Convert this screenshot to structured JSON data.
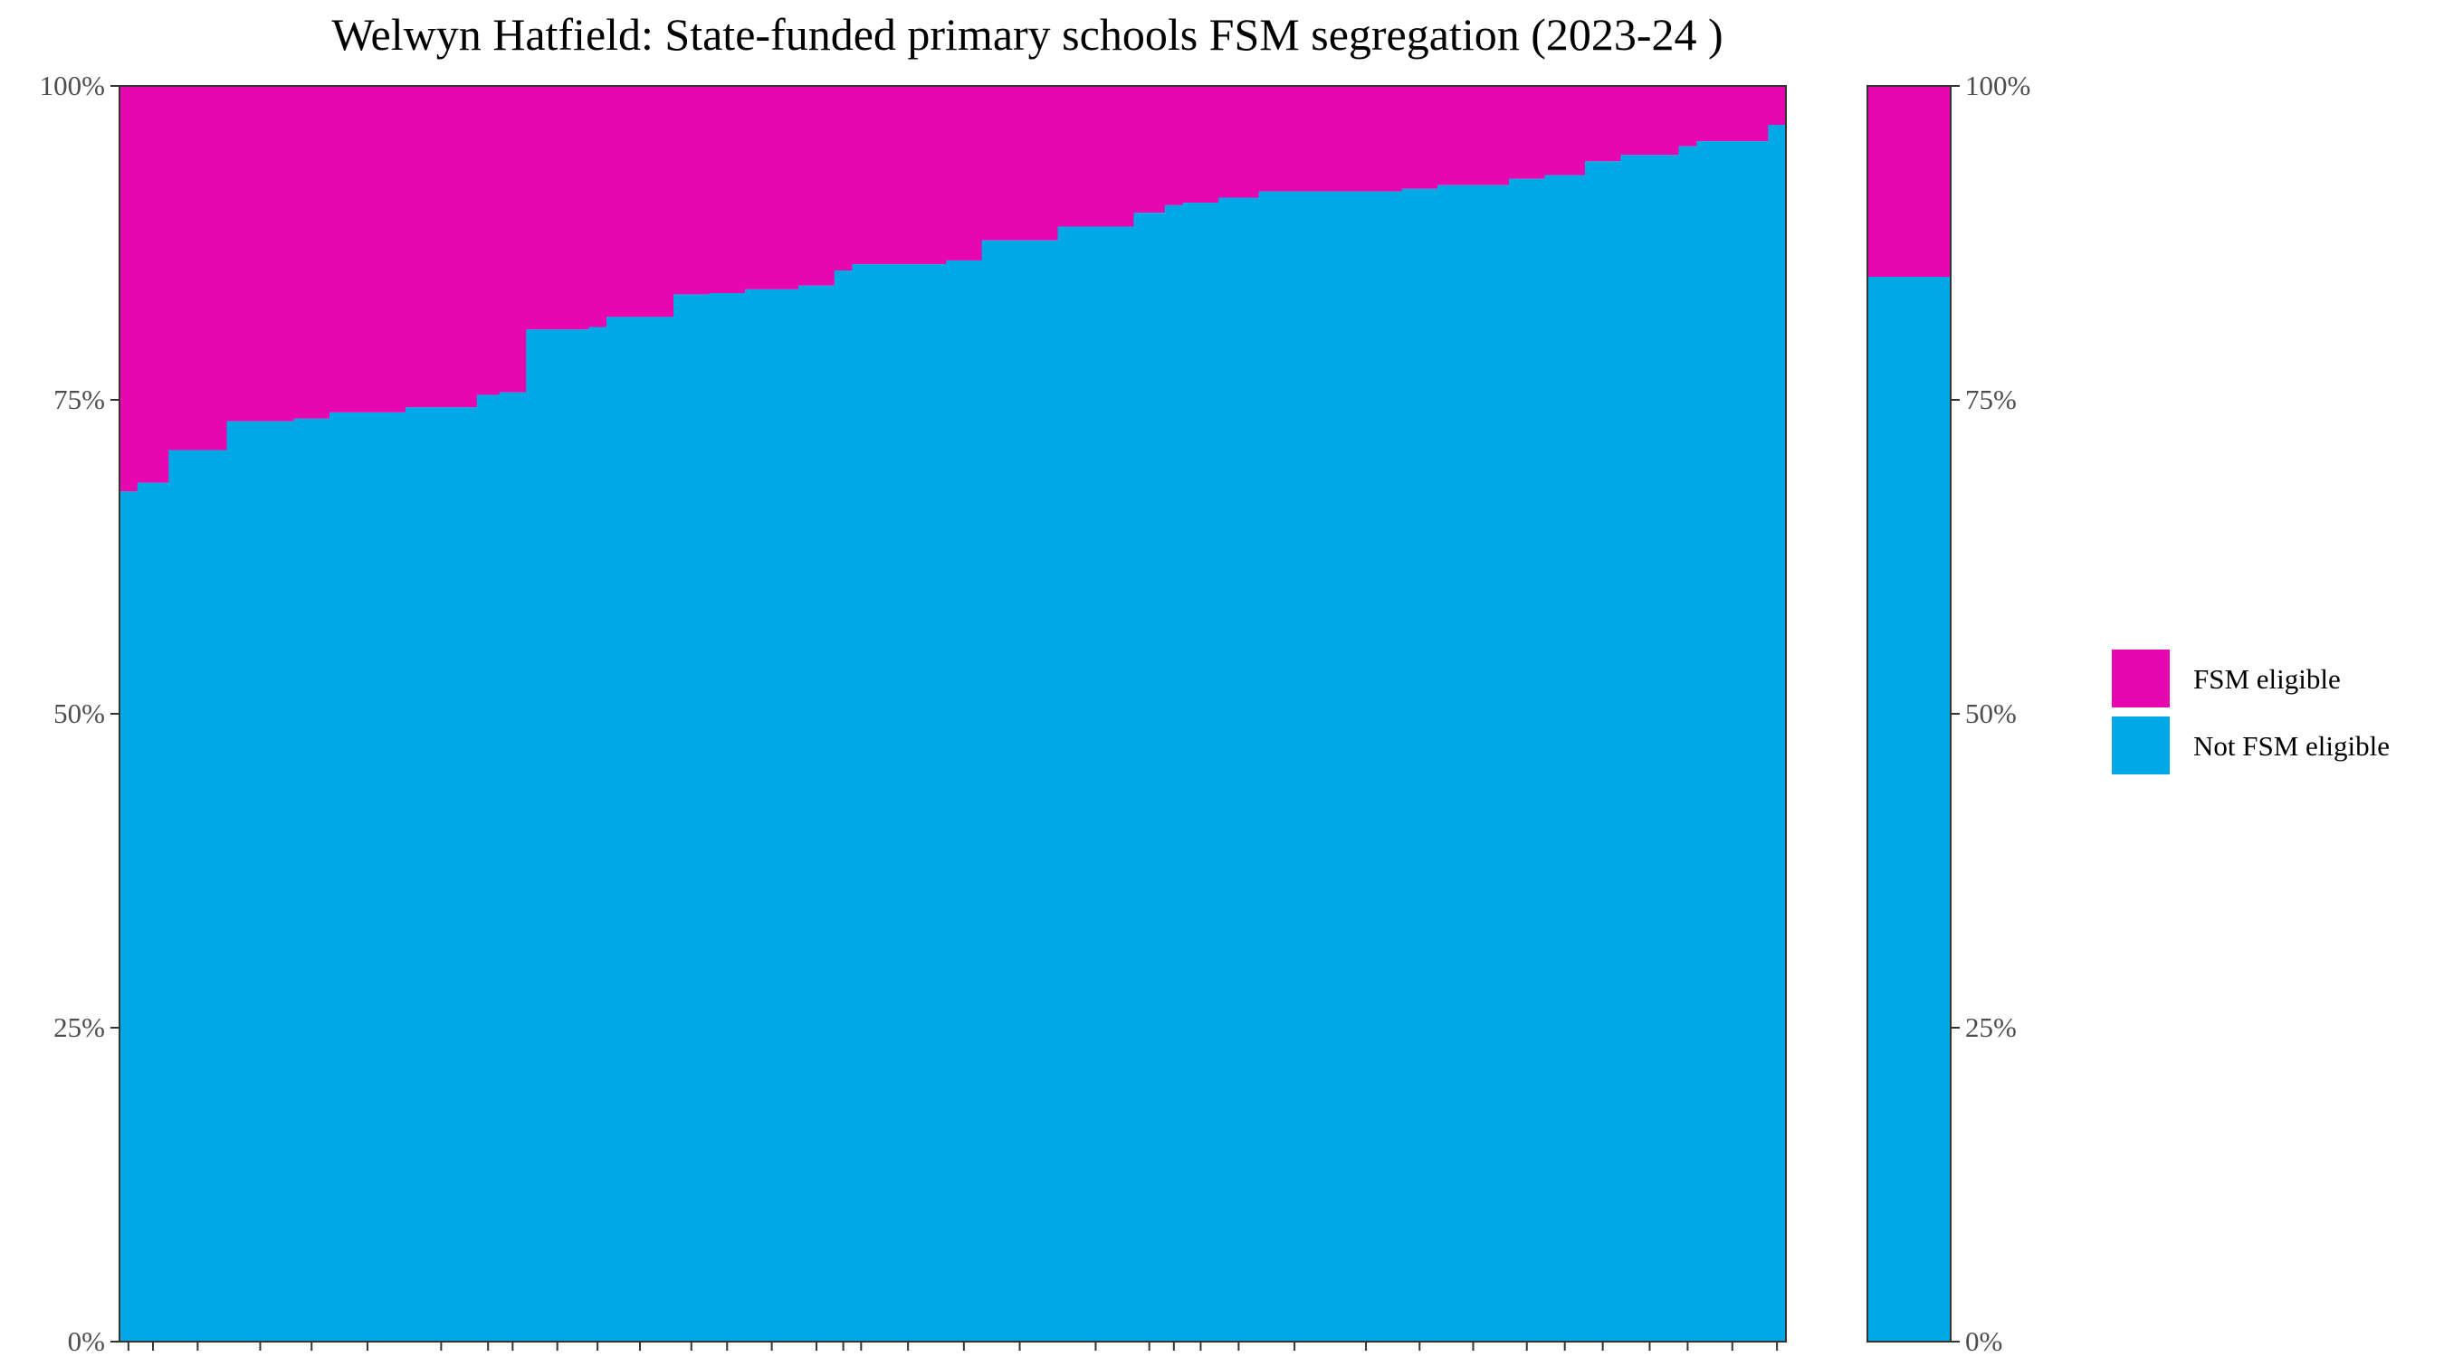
{
  "chart_data": {
    "type": "bar",
    "stacked": true,
    "normalized": true,
    "title": "Welwyn Hatfield: State-funded primary schools FSM segregation (2023-24 )",
    "xlabel": "",
    "ylabel": "",
    "ylim": [
      0,
      100
    ],
    "y_ticks": [
      "0%",
      "25%",
      "50%",
      "75%",
      "100%"
    ],
    "grid": false,
    "legend_position": "right",
    "colors": {
      "fsm": "#E707B0",
      "not_fsm": "#00A8E6",
      "axis": "#333333",
      "tick_text": "#4d4d4d"
    },
    "legend": [
      {
        "key": "fsm",
        "label": "FSM eligible"
      },
      {
        "key": "not_fsm",
        "label": "Not FSM eligible"
      }
    ],
    "units": "percent of pupils",
    "schools": [
      {
        "pupils": 20,
        "not_fsm": 67.7
      },
      {
        "pupils": 35,
        "not_fsm": 68.4
      },
      {
        "pupils": 65,
        "not_fsm": 71.0
      },
      {
        "pupils": 75,
        "not_fsm": 73.3
      },
      {
        "pupils": 40,
        "not_fsm": 73.5
      },
      {
        "pupils": 85,
        "not_fsm": 74.0
      },
      {
        "pupils": 80,
        "not_fsm": 74.4
      },
      {
        "pupils": 25,
        "not_fsm": 75.4
      },
      {
        "pupils": 30,
        "not_fsm": 75.6
      },
      {
        "pupils": 70,
        "not_fsm": 80.6
      },
      {
        "pupils": 20,
        "not_fsm": 80.8
      },
      {
        "pupils": 75,
        "not_fsm": 81.6
      },
      {
        "pupils": 40,
        "not_fsm": 83.4
      },
      {
        "pupils": 40,
        "not_fsm": 83.5
      },
      {
        "pupils": 60,
        "not_fsm": 83.8
      },
      {
        "pupils": 40,
        "not_fsm": 84.1
      },
      {
        "pupils": 20,
        "not_fsm": 85.3
      },
      {
        "pupils": 20,
        "not_fsm": 85.8
      },
      {
        "pupils": 85,
        "not_fsm": 85.8
      },
      {
        "pupils": 40,
        "not_fsm": 86.1
      },
      {
        "pupils": 85,
        "not_fsm": 87.7
      },
      {
        "pupils": 85,
        "not_fsm": 88.8
      },
      {
        "pupils": 35,
        "not_fsm": 89.9
      },
      {
        "pupils": 20,
        "not_fsm": 90.5
      },
      {
        "pupils": 40,
        "not_fsm": 90.7
      },
      {
        "pupils": 45,
        "not_fsm": 91.1
      },
      {
        "pupils": 80,
        "not_fsm": 91.6
      },
      {
        "pupils": 80,
        "not_fsm": 91.6
      },
      {
        "pupils": 40,
        "not_fsm": 91.8
      },
      {
        "pupils": 80,
        "not_fsm": 92.1
      },
      {
        "pupils": 40,
        "not_fsm": 92.6
      },
      {
        "pupils": 45,
        "not_fsm": 92.9
      },
      {
        "pupils": 40,
        "not_fsm": 94.0
      },
      {
        "pupils": 65,
        "not_fsm": 94.5
      },
      {
        "pupils": 20,
        "not_fsm": 95.2
      },
      {
        "pupils": 80,
        "not_fsm": 95.6
      },
      {
        "pupils": 20,
        "not_fsm": 96.9
      }
    ],
    "la_average": {
      "not_fsm": 84.8
    }
  }
}
